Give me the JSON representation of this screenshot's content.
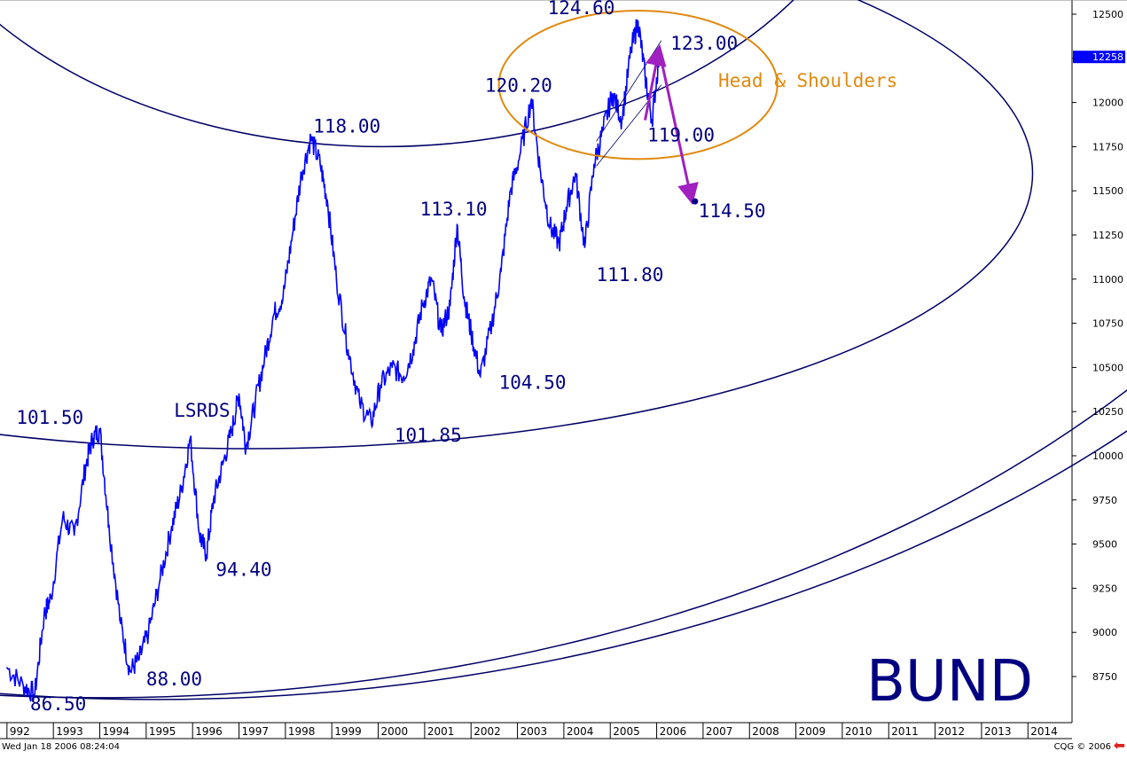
{
  "chart_data": {
    "type": "line",
    "title": "BUND",
    "x_axis_labels": [
      "992",
      "1993",
      "1994",
      "1995",
      "1996",
      "1997",
      "1998",
      "1999",
      "2000",
      "2001",
      "2002",
      "2003",
      "2004",
      "2005",
      "2006",
      "2007",
      "2008",
      "2009",
      "2010",
      "2011",
      "2012",
      "2013",
      "2014"
    ],
    "y_axis_labels": [
      "12500",
      "12250",
      "12000",
      "11750",
      "11500",
      "11250",
      "11000",
      "10750",
      "10500",
      "10250",
      "10000",
      "9750",
      "9500",
      "9250",
      "9000",
      "8750"
    ],
    "ylim": [
      8650,
      12560
    ],
    "xlim": [
      1991.85,
      2014.95
    ],
    "current_price": "12258",
    "series": [
      {
        "color": "#0000ff",
        "points": [
          [
            1992.0,
            8800
          ],
          [
            1992.35,
            8700
          ],
          [
            1992.6,
            8650
          ],
          [
            1992.8,
            9100
          ],
          [
            1992.95,
            9200
          ],
          [
            1993.2,
            9650
          ],
          [
            1993.45,
            9550
          ],
          [
            1993.7,
            9950
          ],
          [
            1993.85,
            10100
          ],
          [
            1994.0,
            10150
          ],
          [
            1994.2,
            9600
          ],
          [
            1994.45,
            9050
          ],
          [
            1994.65,
            8780
          ],
          [
            1994.85,
            8850
          ],
          [
            1995.05,
            9000
          ],
          [
            1995.3,
            9300
          ],
          [
            1995.55,
            9600
          ],
          [
            1995.75,
            9800
          ],
          [
            1995.95,
            10100
          ],
          [
            1996.15,
            9550
          ],
          [
            1996.3,
            9440
          ],
          [
            1996.45,
            9750
          ],
          [
            1996.65,
            9950
          ],
          [
            1996.85,
            10150
          ],
          [
            1997.0,
            10350
          ],
          [
            1997.15,
            10050
          ],
          [
            1997.35,
            10300
          ],
          [
            1997.55,
            10550
          ],
          [
            1997.75,
            10800
          ],
          [
            1997.95,
            10900
          ],
          [
            1998.15,
            11250
          ],
          [
            1998.35,
            11600
          ],
          [
            1998.55,
            11800
          ],
          [
            1998.75,
            11650
          ],
          [
            1998.9,
            11450
          ],
          [
            1999.1,
            11000
          ],
          [
            1999.35,
            10600
          ],
          [
            1999.6,
            10300
          ],
          [
            1999.85,
            10185
          ],
          [
            2000.05,
            10400
          ],
          [
            2000.3,
            10500
          ],
          [
            2000.55,
            10450
          ],
          [
            2000.75,
            10600
          ],
          [
            2000.95,
            10850
          ],
          [
            2001.15,
            11000
          ],
          [
            2001.35,
            10700
          ],
          [
            2001.55,
            10850
          ],
          [
            2001.7,
            11310
          ],
          [
            2001.85,
            10900
          ],
          [
            2002.0,
            10700
          ],
          [
            2002.2,
            10450
          ],
          [
            2002.45,
            10750
          ],
          [
            2002.65,
            11050
          ],
          [
            2002.85,
            11500
          ],
          [
            2003.05,
            11700
          ],
          [
            2003.3,
            12020
          ],
          [
            2003.5,
            11600
          ],
          [
            2003.7,
            11300
          ],
          [
            2003.9,
            11200
          ],
          [
            2004.05,
            11400
          ],
          [
            2004.25,
            11600
          ],
          [
            2004.45,
            11180
          ],
          [
            2004.65,
            11650
          ],
          [
            2004.85,
            11850
          ],
          [
            2005.05,
            12050
          ],
          [
            2005.25,
            11900
          ],
          [
            2005.45,
            12300
          ],
          [
            2005.6,
            12460
          ],
          [
            2005.75,
            12150
          ],
          [
            2005.9,
            11900
          ],
          [
            2006.05,
            12258
          ]
        ]
      }
    ],
    "price_labels": [
      {
        "text": "86.50",
        "x": 1992.5,
        "y": 8560
      },
      {
        "text": "101.50",
        "x": 1992.2,
        "y": 10180
      },
      {
        "text": "88.00",
        "x": 1995.0,
        "y": 8700
      },
      {
        "text": "LSRDS",
        "x": 1995.6,
        "y": 10220
      },
      {
        "text": "94.40",
        "x": 1996.5,
        "y": 9320
      },
      {
        "text": "118.00",
        "x": 1998.6,
        "y": 11830
      },
      {
        "text": "101.85",
        "x": 2000.35,
        "y": 10080
      },
      {
        "text": "113.10",
        "x": 2000.9,
        "y": 11360
      },
      {
        "text": "104.50",
        "x": 2002.6,
        "y": 10380
      },
      {
        "text": "120.20",
        "x": 2002.3,
        "y": 12060
      },
      {
        "text": "111.80",
        "x": 2004.7,
        "y": 10990
      },
      {
        "text": "124.60",
        "x": 2003.65,
        "y": 12500
      },
      {
        "text": "123.00",
        "x": 2006.3,
        "y": 12300
      },
      {
        "text": "119.00",
        "x": 2005.8,
        "y": 11780
      },
      {
        "text": "114.50",
        "x": 2006.9,
        "y": 11350
      }
    ],
    "annotations": {
      "pattern_label": "Head & Shoulders",
      "projection": {
        "start_x": 2005.75,
        "start_y": 11900,
        "peak_x": 2006.05,
        "peak_y": 12300,
        "target_x": 2006.75,
        "target_y": 11450
      },
      "circle_orange": {
        "center_x": 2005.6,
        "center_y": 12100,
        "radius_x": 3.0,
        "radius_y": 420
      },
      "arcs": [
        {
          "name": "upper-circle-arc",
          "center_x": 2000.1,
          "center_y": 13700,
          "radius_x": 10.8,
          "radius_y": 1950
        },
        {
          "name": "middle-circle-arc",
          "center_x": 1997.2,
          "center_y": 11600,
          "radius_x": 16.9,
          "radius_y": 1560
        },
        {
          "name": "lower-arc-1",
          "center_x": 1994.0,
          "center_y": 13550,
          "radius_x": 29.0,
          "radius_y": 4920
        },
        {
          "name": "lower-arc-2",
          "center_x": 1995.2,
          "center_y": 13850,
          "radius_x": 29.7,
          "radius_y": 5230
        }
      ]
    },
    "xlabel": "",
    "ylabel": "",
    "grid": false,
    "legend": "none"
  },
  "footer": {
    "timestamp": "Wed Jan 18 2006 08:24:04",
    "copyright": "CQG © 2006",
    "arrow_icon": "back-arrow-icon"
  },
  "colors": {
    "price_line": "#0000ff",
    "labels": "#000080",
    "arcs": "#000066",
    "orange": "#e08a10",
    "projection": "#a020c0",
    "current_price_box": "#0000ff"
  }
}
